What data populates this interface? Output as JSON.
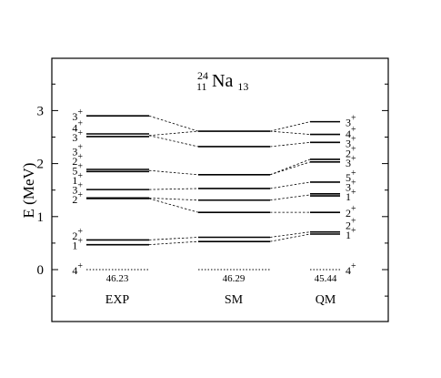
{
  "chart_data": {
    "type": "level-scheme",
    "title": {
      "mass_number": "24",
      "proton_number": "11",
      "symbol": "Na",
      "neutron_number": "13"
    },
    "ylabel": "E (MeV)",
    "ylim": [
      -1.0,
      3.75
    ],
    "yticks": [
      0,
      1,
      2,
      3
    ],
    "ytick_labels": [
      "0",
      "1",
      "2",
      "3"
    ],
    "columns": [
      {
        "name": "EXP",
        "sublabel": "46.23",
        "levels": [
          {
            "energy": 0.0,
            "spin": "4",
            "parity": "+",
            "dashed": true
          },
          {
            "energy": 0.47,
            "spin": "1",
            "parity": "+"
          },
          {
            "energy": 0.56,
            "spin": "2",
            "parity": "+"
          },
          {
            "energy": 1.34,
            "spin": "2",
            "parity": "+"
          },
          {
            "energy": 1.35,
            "spin": "3",
            "parity": "+"
          },
          {
            "energy": 1.35,
            "spin": "1",
            "parity": "+"
          },
          {
            "energy": 1.51,
            "spin": "5",
            "parity": "+"
          },
          {
            "energy": 1.85,
            "spin": "2",
            "parity": "+"
          },
          {
            "energy": 1.89,
            "spin": "3",
            "parity": "+"
          },
          {
            "energy": 2.51,
            "spin": "3",
            "parity": "+"
          },
          {
            "energy": 2.56,
            "spin": "4",
            "parity": "+"
          },
          {
            "energy": 2.9,
            "spin": "3",
            "parity": "+"
          }
        ]
      },
      {
        "name": "SM",
        "sublabel": "46.29",
        "levels": [
          {
            "energy": 0.0,
            "dashed": true
          },
          {
            "energy": 0.53
          },
          {
            "energy": 0.61
          },
          {
            "energy": 1.08
          },
          {
            "energy": 1.31
          },
          {
            "energy": 1.53
          },
          {
            "energy": 1.79
          },
          {
            "energy": 2.32
          },
          {
            "energy": 2.61
          }
        ]
      },
      {
        "name": "QM",
        "sublabel": "45.44",
        "levels": [
          {
            "energy": 0.0,
            "spin": "4",
            "parity": "+",
            "dashed": true
          },
          {
            "energy": 0.67,
            "spin": "1",
            "parity": "+"
          },
          {
            "energy": 0.71,
            "spin": "2",
            "parity": "+"
          },
          {
            "energy": 1.08,
            "spin": "2",
            "parity": "+"
          },
          {
            "energy": 1.39,
            "spin": "1",
            "parity": "+"
          },
          {
            "energy": 1.43,
            "spin": "3",
            "parity": "+"
          },
          {
            "energy": 1.65,
            "spin": "5",
            "parity": "+"
          },
          {
            "energy": 2.03,
            "spin": "3",
            "parity": "+"
          },
          {
            "energy": 2.08,
            "spin": "2",
            "parity": "+"
          },
          {
            "energy": 2.4,
            "spin": "3",
            "parity": "+"
          },
          {
            "energy": 2.55,
            "spin": "4",
            "parity": "+"
          },
          {
            "energy": 2.79,
            "spin": "3",
            "parity": "+"
          }
        ]
      }
    ],
    "connections": [
      {
        "from": [
          "EXP",
          0.47
        ],
        "to": [
          "SM",
          0.53
        ]
      },
      {
        "from": [
          "EXP",
          0.56
        ],
        "to": [
          "SM",
          0.61
        ]
      },
      {
        "from": [
          "EXP",
          1.34
        ],
        "to": [
          "SM",
          1.08
        ]
      },
      {
        "from": [
          "EXP",
          1.35
        ],
        "to": [
          "SM",
          1.31
        ]
      },
      {
        "from": [
          "EXP",
          1.51
        ],
        "to": [
          "SM",
          1.53
        ]
      },
      {
        "from": [
          "EXP",
          1.87
        ],
        "to": [
          "SM",
          1.79
        ]
      },
      {
        "from": [
          "EXP",
          2.53
        ],
        "to": [
          "SM",
          2.32
        ]
      },
      {
        "from": [
          "EXP",
          2.53
        ],
        "to": [
          "SM",
          2.61
        ]
      },
      {
        "from": [
          "EXP",
          2.9
        ],
        "to": [
          "SM",
          2.61
        ]
      },
      {
        "from": [
          "SM",
          0.53
        ],
        "to": [
          "QM",
          0.67
        ]
      },
      {
        "from": [
          "SM",
          0.61
        ],
        "to": [
          "QM",
          0.71
        ]
      },
      {
        "from": [
          "SM",
          1.08
        ],
        "to": [
          "QM",
          1.08
        ]
      },
      {
        "from": [
          "SM",
          1.31
        ],
        "to": [
          "QM",
          1.41
        ]
      },
      {
        "from": [
          "SM",
          1.53
        ],
        "to": [
          "QM",
          1.65
        ]
      },
      {
        "from": [
          "SM",
          1.79
        ],
        "to": [
          "QM",
          2.03
        ]
      },
      {
        "from": [
          "SM",
          1.79
        ],
        "to": [
          "QM",
          2.08
        ]
      },
      {
        "from": [
          "SM",
          2.32
        ],
        "to": [
          "QM",
          2.4
        ]
      },
      {
        "from": [
          "SM",
          2.61
        ],
        "to": [
          "QM",
          2.55
        ]
      },
      {
        "from": [
          "SM",
          2.61
        ],
        "to": [
          "QM",
          2.79
        ]
      }
    ],
    "grid": false
  }
}
